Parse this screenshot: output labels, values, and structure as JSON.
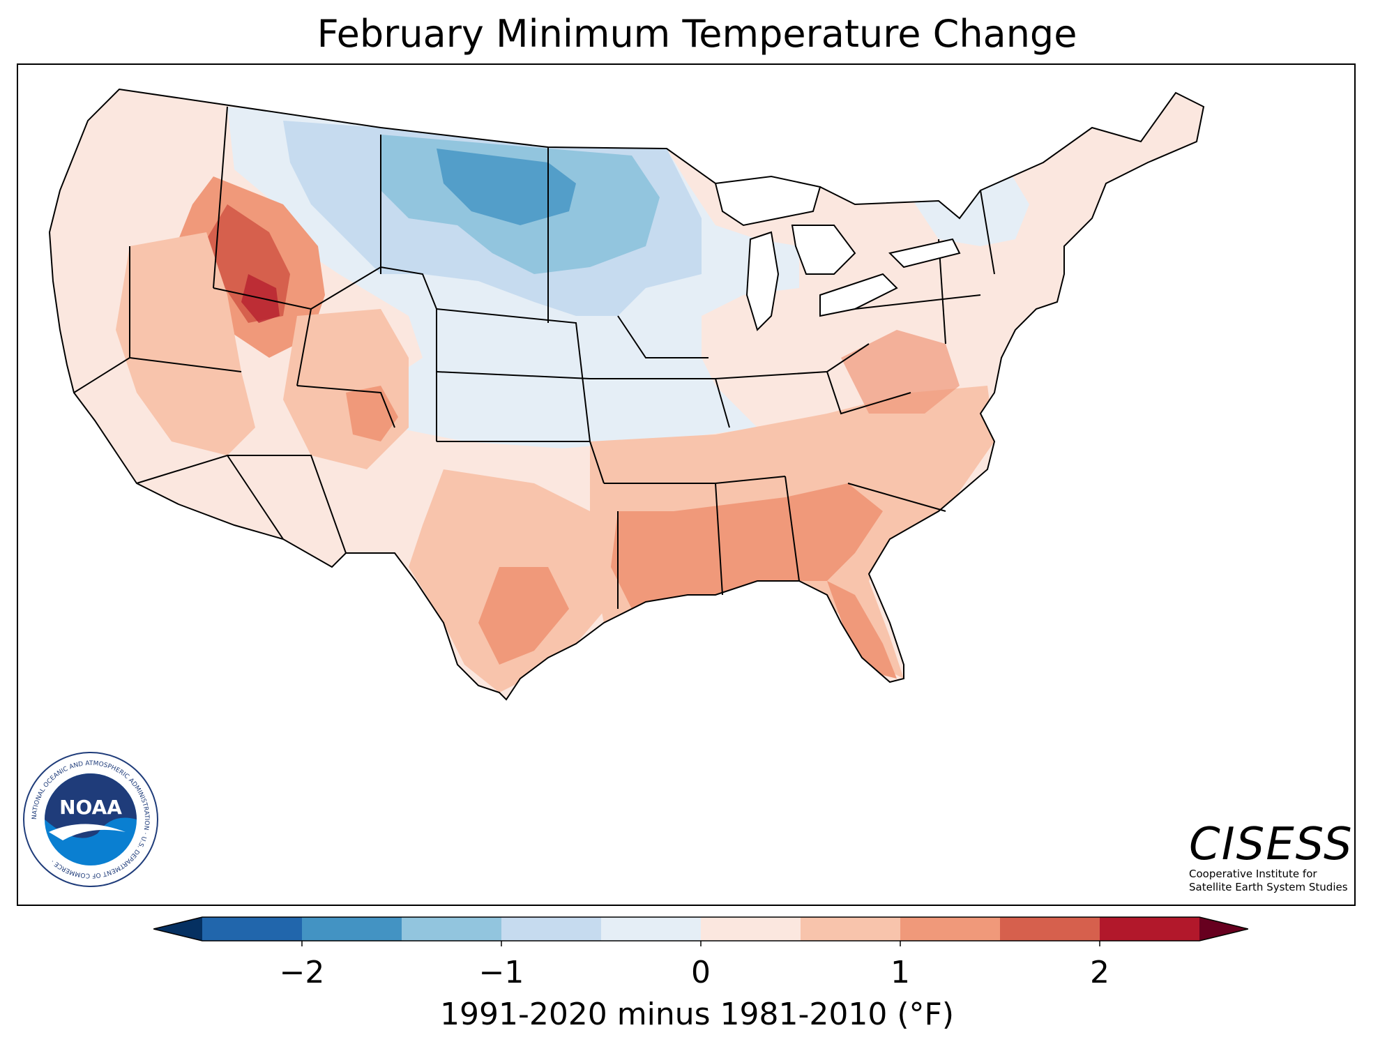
{
  "title": "February Minimum Temperature Change",
  "colorbar": {
    "label": "1991-2020 minus 1981-2010 (°F)",
    "ticks": [
      "−2",
      "−1",
      "0",
      "1",
      "2"
    ],
    "tick_values": [
      -2,
      -1,
      0,
      1,
      2
    ],
    "range": [
      -2.5,
      2.5
    ],
    "bin_edges": [
      -2.5,
      -2.0,
      -1.5,
      -1.0,
      -0.5,
      0,
      0.5,
      1.0,
      1.5,
      2.0,
      2.5
    ],
    "colors": [
      "#2166ac",
      "#4393c3",
      "#92c5de",
      "#c6dbef",
      "#e5eef6",
      "#fbe7df",
      "#f8c4ac",
      "#f0997a",
      "#d6604d",
      "#b2182b"
    ],
    "extend_low_color": "#053061",
    "extend_high_color": "#67001f"
  },
  "logos": {
    "noaa": {
      "text": "NOAA",
      "ring_text": "NATIONAL OCEANIC AND ATMOSPHERIC ADMINISTRATION · U.S. DEPARTMENT OF COMMERCE ·",
      "colors": {
        "dark": "#1f3c7a",
        "light": "#0a7fd1"
      }
    },
    "cisess": {
      "name": "CISESS",
      "subtitle_line1": "Cooperative Institute for",
      "subtitle_line2": "Satellite Earth System Studies"
    }
  },
  "map": {
    "region": "Contiguous United States",
    "variable": "February minimum temperature change",
    "units": "°F",
    "regional_pattern": [
      {
        "region": "Northern Plains / Upper Midwest",
        "value_range": [
          -1.5,
          -0.5
        ]
      },
      {
        "region": "Central Plains / Midwest",
        "value_range": [
          -0.5,
          0
        ]
      },
      {
        "region": "Idaho / Utah / Wyoming",
        "value_range": [
          1.0,
          2.0
        ]
      },
      {
        "region": "Pacific Coast / Great Basin",
        "value_range": [
          0,
          1.0
        ]
      },
      {
        "region": "Gulf Coast / Southeast",
        "value_range": [
          0.5,
          1.5
        ]
      },
      {
        "region": "Northeast",
        "value_range": [
          0,
          1.0
        ]
      }
    ]
  }
}
